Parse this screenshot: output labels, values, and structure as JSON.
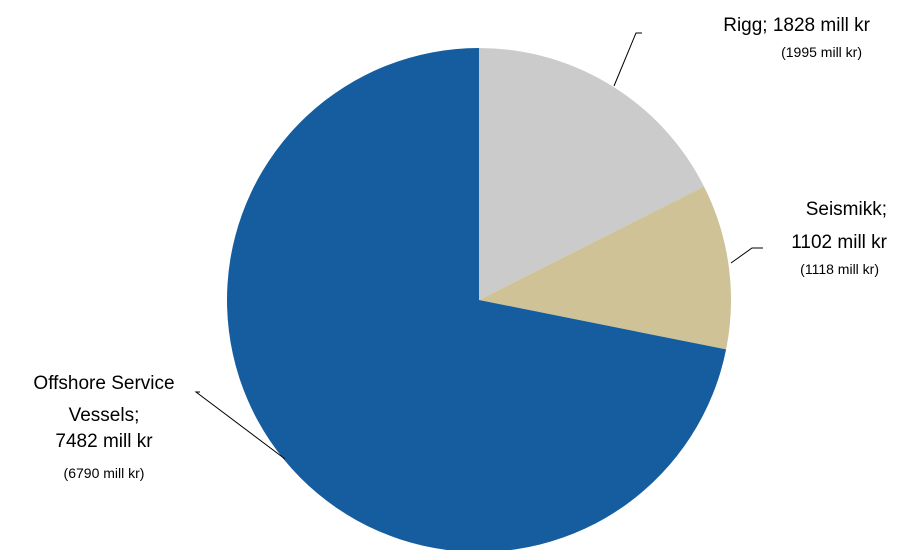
{
  "chart_data": {
    "type": "pie",
    "start_angle_deg": 0,
    "direction": "clockwise",
    "slices": [
      {
        "label": "Rigg; 1828 mill kr",
        "label_lines": [
          "Rigg; 1828 mill kr"
        ],
        "sub_label": "(1995 mill kr)",
        "category": "Rigg",
        "value": 1828,
        "previous_value": 1995,
        "unit": "mill kr",
        "color": "#CBCBCB"
      },
      {
        "label": "Seismikk; 1102 mill kr",
        "label_lines": [
          "Seismikk;",
          "1102 mill kr"
        ],
        "sub_label": "(1118 mill kr)",
        "category": "Seismikk",
        "value": 1102,
        "previous_value": 1118,
        "unit": "mill kr",
        "color": "#CFC297"
      },
      {
        "label": "Offshore Service Vessels; 7482 mill kr",
        "label_lines": [
          "Offshore Service",
          "Vessels;",
          "7482 mill kr"
        ],
        "sub_label": "(6790 mill kr)",
        "category": "Offshore Service Vessels",
        "value": 7482,
        "previous_value": 6790,
        "unit": "mill kr",
        "color": "#155D9F"
      }
    ]
  }
}
